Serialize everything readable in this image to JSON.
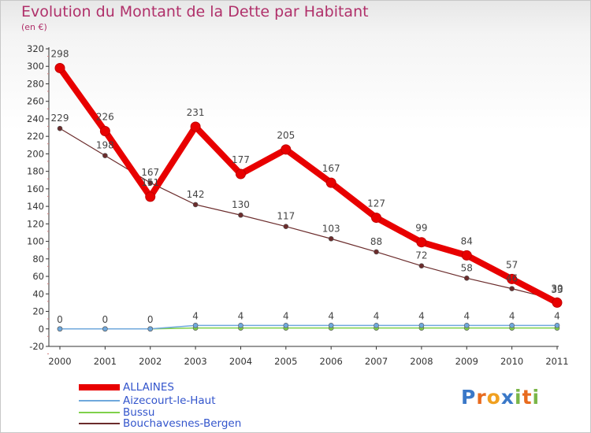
{
  "header": {
    "title": "Evolution du Montant de la Dette par Habitant",
    "unit": "(en €)"
  },
  "chart_data": {
    "type": "line",
    "title": "Evolution du Montant de la Dette par Habitant",
    "ylabel": "(en €)",
    "xlabel": "",
    "categories": [
      "2000",
      "2001",
      "2002",
      "2003",
      "2004",
      "2005",
      "2006",
      "2007",
      "2008",
      "2009",
      "2010",
      "2011"
    ],
    "ylim": [
      -20,
      320
    ],
    "yticks": [
      -20,
      0,
      20,
      40,
      60,
      80,
      100,
      120,
      140,
      160,
      180,
      200,
      220,
      240,
      260,
      280,
      300,
      320
    ],
    "grid": false,
    "legend_position": "bottom-left",
    "series": [
      {
        "name": "ALLAINES",
        "color": "#e80000",
        "values": [
          298,
          226,
          151,
          231,
          177,
          205,
          167,
          127,
          99,
          84,
          57,
          30
        ],
        "labels": [
          "298",
          "226",
          "151",
          "231",
          "177",
          "205",
          "167",
          "127",
          "99",
          "84",
          "57",
          "30"
        ]
      },
      {
        "name": "Aizecourt-le-Haut",
        "color": "#6fa8dc",
        "values": [
          0,
          0,
          0,
          4,
          4,
          4,
          4,
          4,
          4,
          4,
          4,
          4
        ],
        "labels": [
          "0",
          "0",
          "0",
          "4",
          "4",
          "4",
          "4",
          "4",
          "4",
          "4",
          "4",
          "4"
        ]
      },
      {
        "name": "Bussu",
        "color": "#7fd04a",
        "values": [
          0,
          0,
          0,
          1,
          1,
          1,
          1,
          1,
          1,
          1,
          1,
          1
        ],
        "labels": []
      },
      {
        "name": "Bouchavesnes-Bergen",
        "color": "#6b2c2c",
        "values": [
          229,
          198,
          167,
          142,
          130,
          117,
          103,
          88,
          72,
          58,
          46,
          33
        ],
        "labels": [
          "229",
          "198",
          "167",
          "142",
          "130",
          "117",
          "103",
          "88",
          "72",
          "58",
          "46",
          "33"
        ]
      }
    ]
  },
  "logo": {
    "letters": [
      "P",
      "r",
      "o",
      "x",
      "i",
      "t",
      "i"
    ],
    "colors": [
      "#3a78c8",
      "#e86b1f",
      "#f0a020",
      "#3a78c8",
      "#7ab648",
      "#e86b1f",
      "#7ab648"
    ]
  }
}
